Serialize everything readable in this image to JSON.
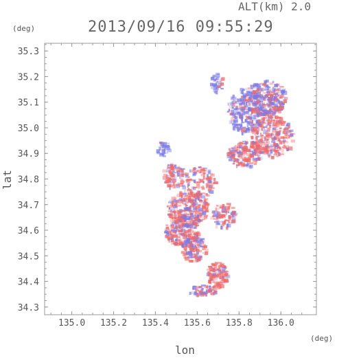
{
  "chart_data": {
    "type": "heatmap",
    "title": "2013/09/16 09:55:29",
    "subtitle": "ALT(km) 2.0",
    "xlabel": "lon",
    "ylabel": "lat",
    "x_unit": "(deg)",
    "y_unit": "(deg)",
    "xlim": [
      134.87,
      136.17
    ],
    "ylim": [
      34.27,
      35.33
    ],
    "x_ticks": [
      135.0,
      135.2,
      135.4,
      135.6,
      135.8,
      136.0
    ],
    "y_ticks": [
      34.3,
      34.4,
      34.5,
      34.6,
      34.7,
      34.8,
      34.9,
      35.0,
      35.1,
      35.2,
      35.3
    ],
    "x_tick_labels": [
      "135.0",
      "135.2",
      "135.4",
      "135.6",
      "135.8",
      "136.0"
    ],
    "y_tick_labels": [
      "34.3",
      "34.4",
      "34.5",
      "34.6",
      "34.7",
      "34.8",
      "34.9",
      "35.0",
      "35.1",
      "35.2",
      "35.3"
    ],
    "grid": false,
    "colors": {
      "positive": "#f06a6a",
      "negative": "#7a7ae8",
      "frame": "#999999"
    }
  }
}
